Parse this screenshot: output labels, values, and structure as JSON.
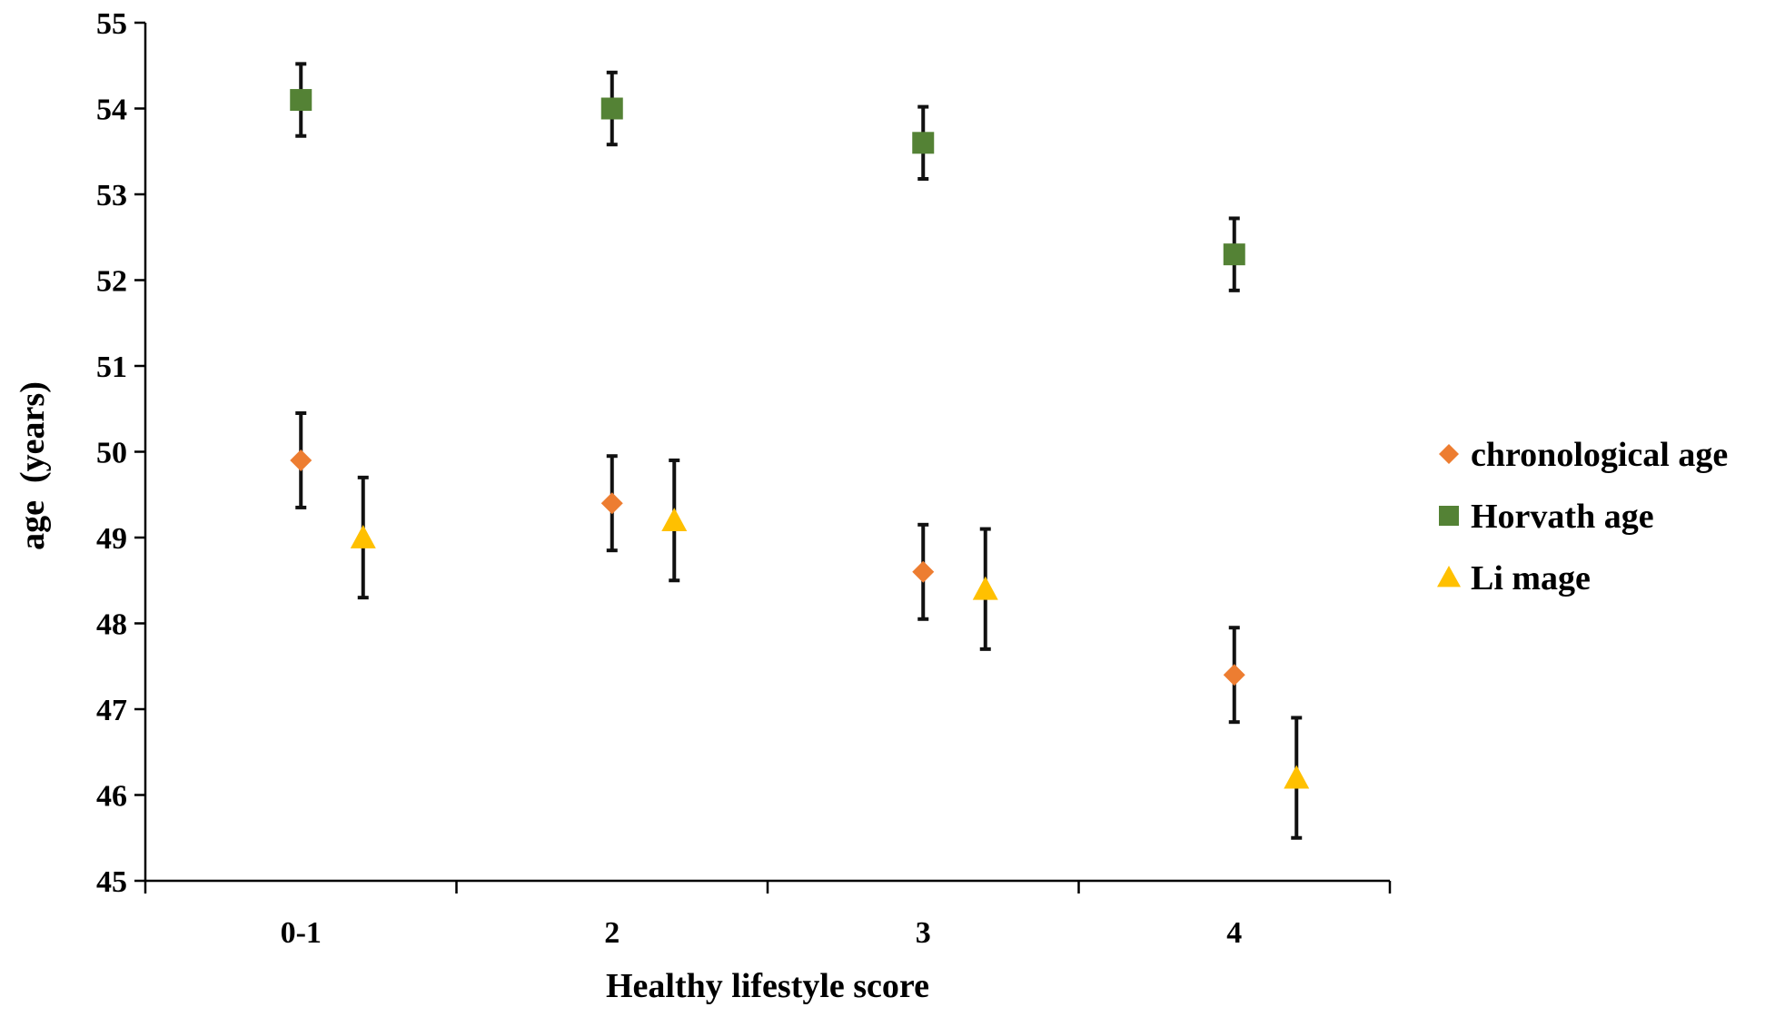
{
  "chart_data": {
    "type": "scatter",
    "title": "",
    "xlabel": "Healthy lifestyle score",
    "ylabel": "age  (years)",
    "categories": [
      "0-1",
      "2",
      "3",
      "4"
    ],
    "ylim": [
      45,
      55
    ],
    "yticks": [
      45,
      46,
      47,
      48,
      49,
      50,
      51,
      52,
      53,
      54,
      55
    ],
    "grid": false,
    "legend_position": "right",
    "error_bar_color": "#111111",
    "series": [
      {
        "name": "chronological age",
        "marker": "diamond",
        "color": "#ED7D31",
        "values": [
          49.9,
          49.4,
          48.6,
          47.4
        ],
        "error": [
          0.55,
          0.55,
          0.55,
          0.55
        ]
      },
      {
        "name": "Horvath age",
        "marker": "square",
        "color": "#548235",
        "values": [
          54.1,
          54.0,
          53.6,
          52.3
        ],
        "error": [
          0.42,
          0.42,
          0.42,
          0.42
        ]
      },
      {
        "name": "Li mage",
        "marker": "triangle",
        "color": "#FFC000",
        "values": [
          49.0,
          49.2,
          48.4,
          46.2
        ],
        "error": [
          0.7,
          0.7,
          0.7,
          0.7
        ]
      }
    ]
  }
}
